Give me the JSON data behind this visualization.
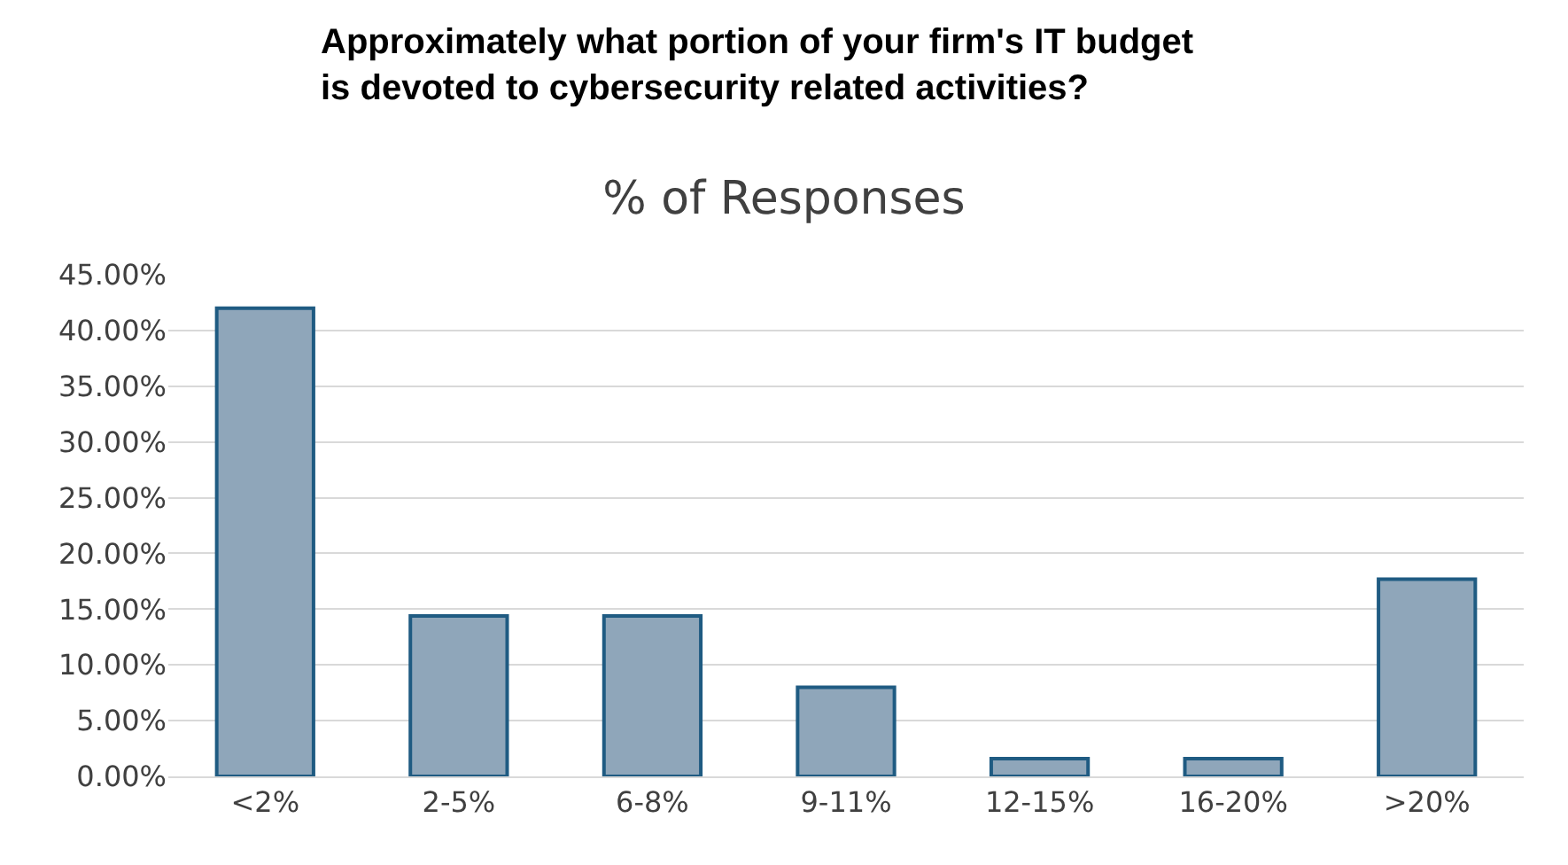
{
  "chart_data": {
    "type": "bar",
    "title": "Approximately what portion of your firm's IT budget\nis devoted to cybersecurity related activities?",
    "subtitle": "% of Responses",
    "categories": [
      "<2%",
      "2-5%",
      "6-8%",
      "9-11%",
      "12-15%",
      "16-20%",
      ">20%"
    ],
    "values": [
      42.0,
      14.4,
      14.4,
      8.0,
      1.6,
      1.6,
      17.7
    ],
    "color": "#8fa6ba",
    "ylim": [
      0,
      45
    ],
    "yticks": [
      {
        "value": 0,
        "label": "0.00%"
      },
      {
        "value": 5,
        "label": "5.00%"
      },
      {
        "value": 10,
        "label": "10.00%"
      },
      {
        "value": 15,
        "label": "15.00%"
      },
      {
        "value": 20,
        "label": "20.00%"
      },
      {
        "value": 25,
        "label": "25.00%"
      },
      {
        "value": 30,
        "label": "30.00%"
      },
      {
        "value": 35,
        "label": "35.00%"
      },
      {
        "value": 40,
        "label": "40.00%"
      },
      {
        "value": 45,
        "label": "45.00%"
      }
    ],
    "grid": "y"
  }
}
